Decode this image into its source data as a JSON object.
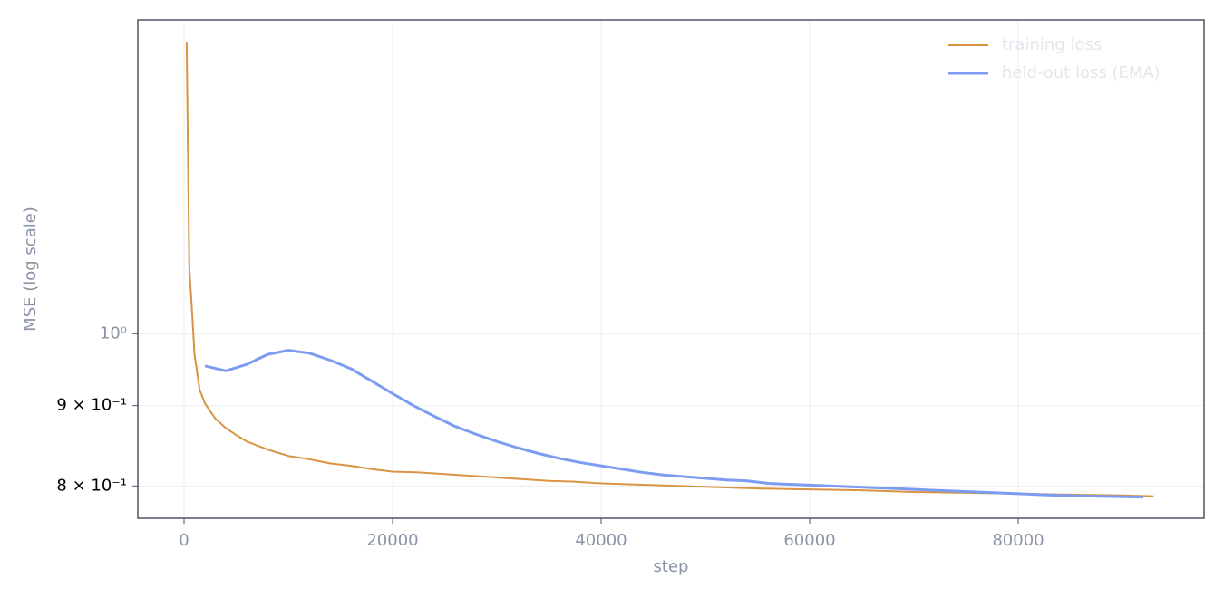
{
  "chart_data": {
    "type": "line",
    "x_label": "step",
    "y_label": "MSE (log scale)",
    "xlim": [
      -4435,
      97826
    ],
    "ylim": [
      0.763,
      1.584
    ],
    "y_scale": "log",
    "grid": true,
    "legend": "upper right",
    "xticks": [
      0,
      20000,
      40000,
      60000,
      80000
    ],
    "yticks": [
      {
        "value": 1,
        "label": "10⁰"
      },
      {
        "value": 0.9,
        "label": "9 × 10⁻¹"
      },
      {
        "value": 0.8,
        "label": "8 × 10⁻¹"
      }
    ],
    "series": [
      {
        "name": "training loss",
        "color": "#d89443",
        "x": [
          250,
          500,
          750,
          1000,
          1500,
          2000,
          2500,
          3000,
          4000,
          5000,
          6000,
          7000,
          8000,
          9000,
          10000,
          12000,
          14000,
          16000,
          18000,
          20000,
          22500,
          25000,
          27500,
          30000,
          32500,
          35000,
          37500,
          40000,
          45000,
          50000,
          55000,
          60000,
          65000,
          70000,
          75000,
          80000,
          85000,
          90000,
          93000
        ],
        "values": [
          1.534,
          1.102,
          1.038,
          0.971,
          0.921,
          0.903,
          0.893,
          0.883,
          0.871,
          0.862,
          0.854,
          0.849,
          0.844,
          0.84,
          0.836,
          0.832,
          0.827,
          0.824,
          0.82,
          0.817,
          0.816,
          0.814,
          0.812,
          0.81,
          0.808,
          0.806,
          0.805,
          0.803,
          0.801,
          0.799,
          0.797,
          0.796,
          0.795,
          0.793,
          0.792,
          0.791,
          0.79,
          0.789,
          0.788
        ]
      },
      {
        "name": "held-out loss (EMA)",
        "color": "#7b9cf0",
        "x": [
          2000,
          4000,
          6000,
          8000,
          10000,
          12000,
          14000,
          16000,
          18000,
          20000,
          22000,
          24000,
          26000,
          28000,
          30000,
          32000,
          34000,
          36000,
          38000,
          40000,
          42000,
          44000,
          46000,
          48000,
          50000,
          52000,
          54000,
          56000,
          58000,
          60000,
          64000,
          68000,
          72000,
          76000,
          80000,
          84000,
          88000,
          92000
        ],
        "values": [
          0.954,
          0.947,
          0.956,
          0.97,
          0.976,
          0.972,
          0.962,
          0.95,
          0.933,
          0.916,
          0.9,
          0.886,
          0.873,
          0.863,
          0.854,
          0.846,
          0.839,
          0.833,
          0.828,
          0.824,
          0.82,
          0.816,
          0.813,
          0.811,
          0.809,
          0.807,
          0.806,
          0.803,
          0.802,
          0.801,
          0.799,
          0.797,
          0.795,
          0.793,
          0.791,
          0.789,
          0.788,
          0.787
        ]
      }
    ]
  }
}
